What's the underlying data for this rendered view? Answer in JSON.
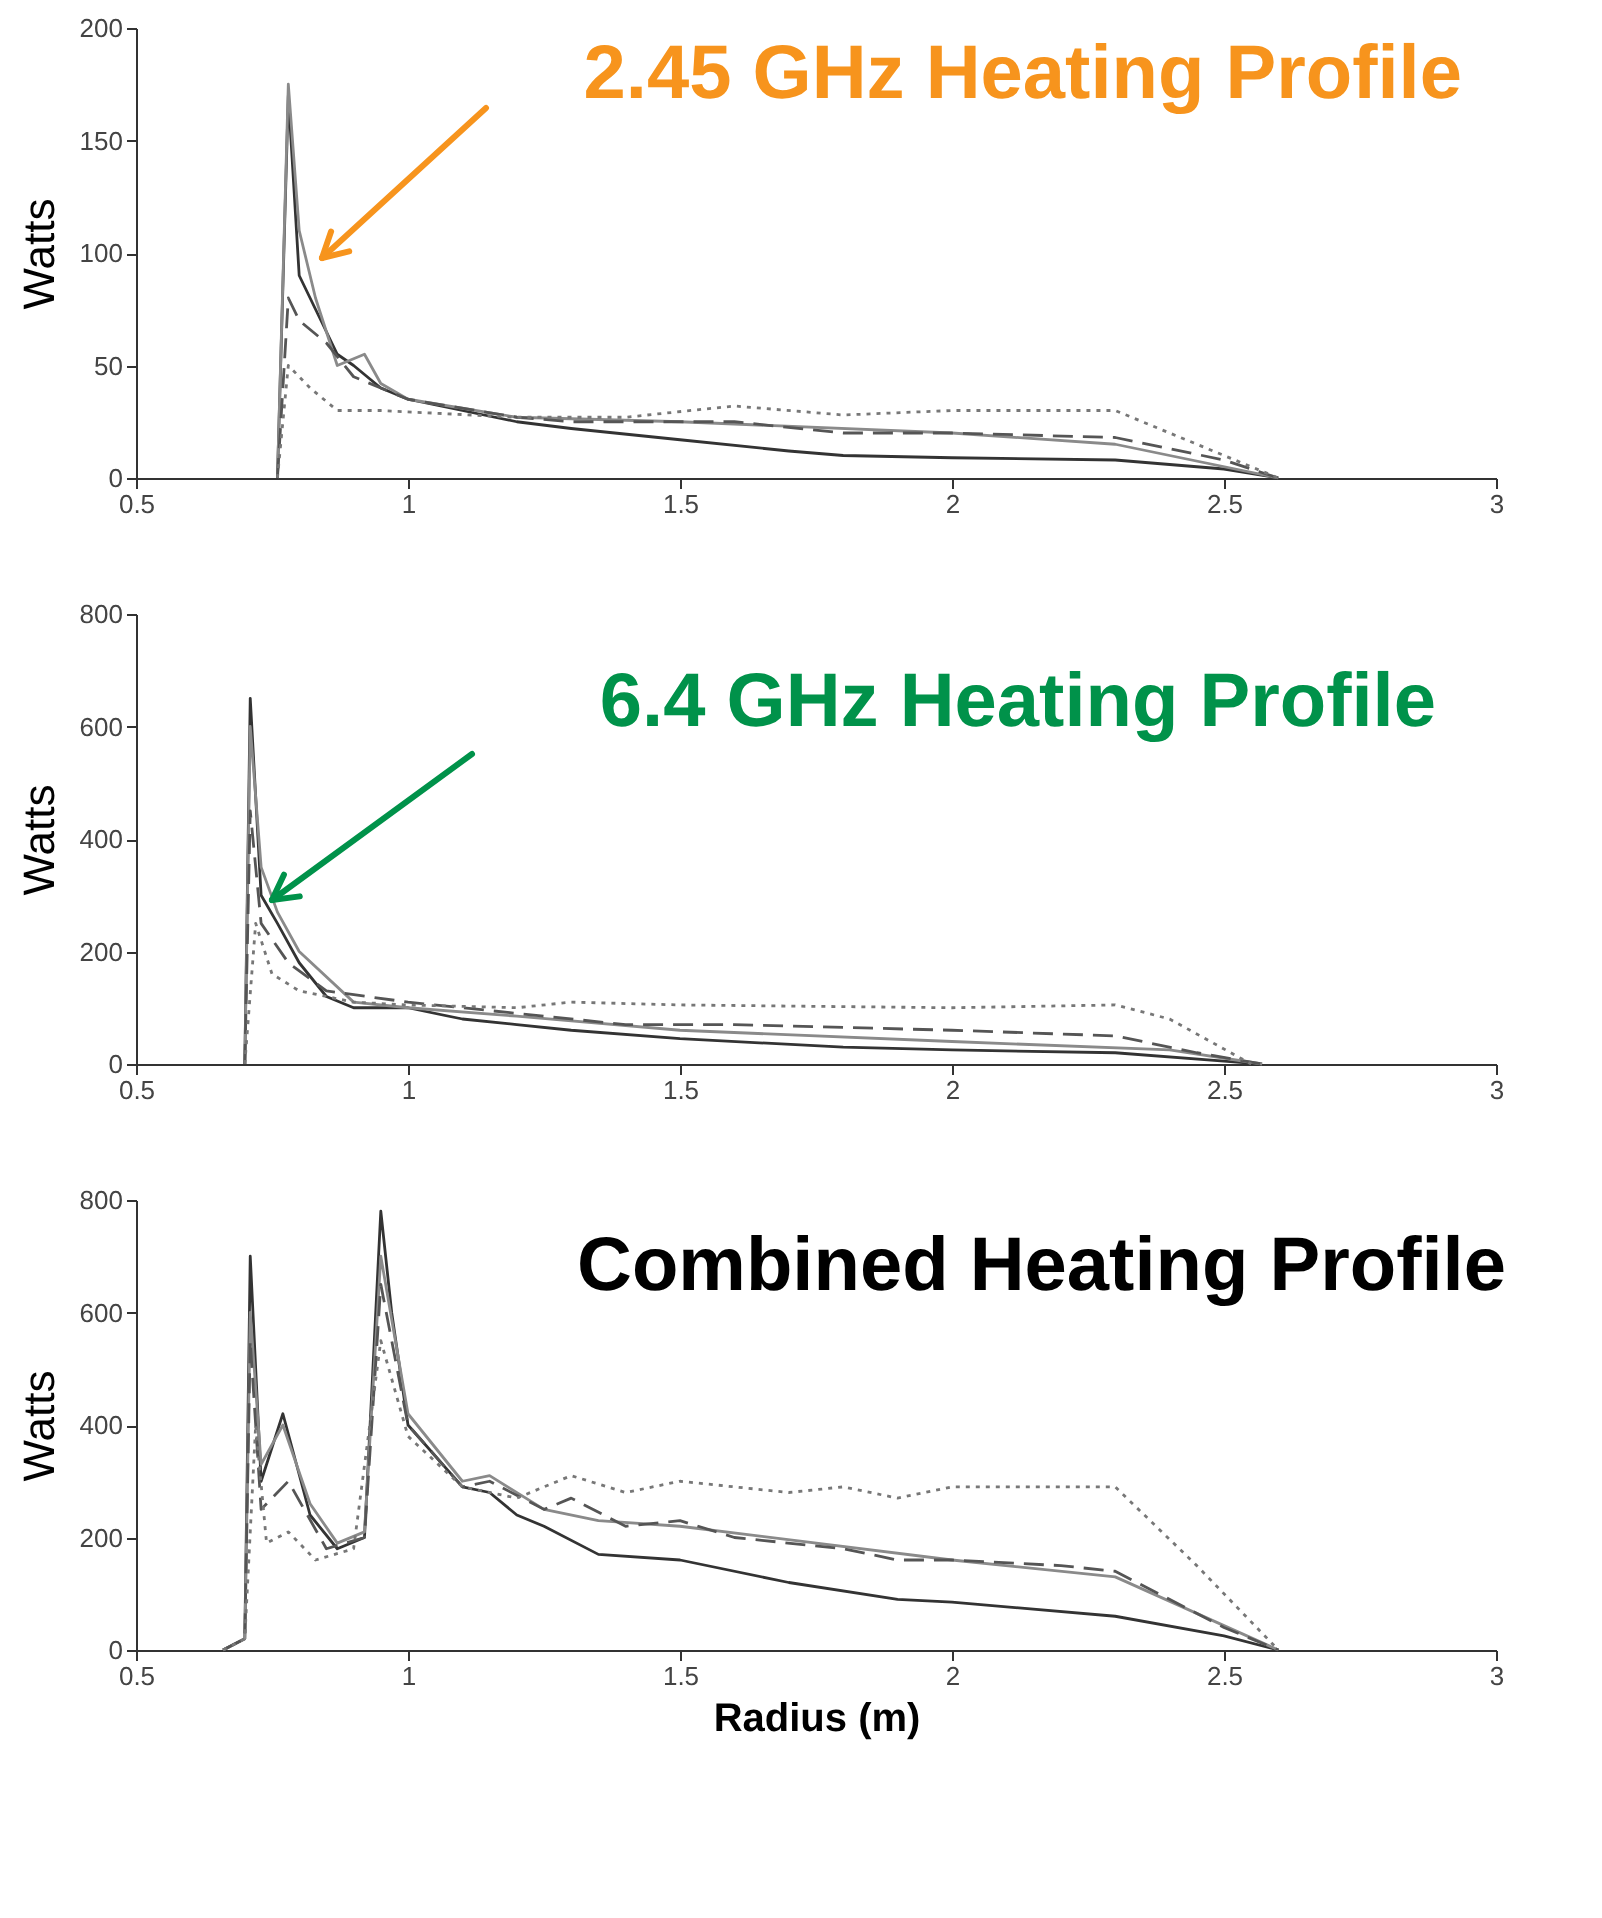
{
  "chart_data": [
    {
      "type": "line",
      "ylabel": "Watts",
      "xlim": [
        0.5,
        3
      ],
      "xticks": [
        0.5,
        1,
        1.5,
        2,
        2.5,
        3
      ],
      "ylim": [
        0,
        200
      ],
      "yticks": [
        0,
        50,
        100,
        150,
        200
      ],
      "grid": false,
      "annotations": [
        "2.45 GHz Heating Profile"
      ],
      "series": [
        {
          "color": "#333333",
          "line_style": "solid",
          "x": [
            0.76,
            0.78,
            0.8,
            0.83,
            0.87,
            0.9,
            0.95,
            1.0,
            1.1,
            1.2,
            1.3,
            1.5,
            1.7,
            1.8,
            2.0,
            2.3,
            2.5,
            2.6
          ],
          "values": [
            0,
            170,
            90,
            75,
            55,
            50,
            40,
            35,
            30,
            25,
            22,
            17,
            12,
            10,
            9,
            8,
            4,
            0
          ]
        },
        {
          "color": "#8a8a8a",
          "line_style": "solid",
          "x": [
            0.76,
            0.78,
            0.8,
            0.83,
            0.87,
            0.92,
            0.95,
            1.0,
            1.2,
            1.5,
            2.0,
            2.3,
            2.6
          ],
          "values": [
            0,
            175,
            110,
            80,
            50,
            55,
            42,
            35,
            27,
            25,
            20,
            15,
            0
          ]
        },
        {
          "color": "#555555",
          "line_style": "dashed",
          "x": [
            0.76,
            0.78,
            0.8,
            0.85,
            0.9,
            0.95,
            1.0,
            1.2,
            1.3,
            1.6,
            1.8,
            2.0,
            2.3,
            2.5,
            2.6
          ],
          "values": [
            0,
            80,
            70,
            60,
            45,
            40,
            35,
            27,
            25,
            25,
            20,
            20,
            18,
            8,
            0
          ]
        },
        {
          "color": "#777777",
          "line_style": "dotted",
          "x": [
            0.76,
            0.78,
            0.82,
            0.87,
            0.95,
            1.2,
            1.4,
            1.6,
            1.8,
            2.0,
            2.3,
            2.5,
            2.6
          ],
          "values": [
            0,
            50,
            40,
            30,
            30,
            27,
            27,
            32,
            28,
            30,
            30,
            10,
            0
          ]
        }
      ]
    },
    {
      "type": "line",
      "ylabel": "Watts",
      "xlim": [
        0.5,
        3
      ],
      "xticks": [
        0.5,
        1,
        1.5,
        2,
        2.5,
        3
      ],
      "ylim": [
        0,
        800
      ],
      "yticks": [
        0,
        200,
        400,
        600,
        800
      ],
      "grid": false,
      "annotations": [
        "6.4 GHz Heating Profile"
      ],
      "series": [
        {
          "color": "#333333",
          "line_style": "solid",
          "x": [
            0.7,
            0.71,
            0.73,
            0.76,
            0.8,
            0.85,
            0.9,
            1.0,
            1.1,
            1.2,
            1.3,
            1.5,
            1.8,
            2.0,
            2.3,
            2.5,
            2.57
          ],
          "values": [
            0,
            650,
            300,
            250,
            180,
            120,
            100,
            100,
            80,
            70,
            60,
            45,
            30,
            25,
            20,
            5,
            0
          ]
        },
        {
          "color": "#8a8a8a",
          "line_style": "solid",
          "x": [
            0.7,
            0.71,
            0.73,
            0.76,
            0.8,
            0.9,
            1.0,
            1.2,
            1.5,
            2.0,
            2.4,
            2.57
          ],
          "values": [
            0,
            600,
            350,
            270,
            200,
            110,
            100,
            85,
            60,
            40,
            25,
            0
          ]
        },
        {
          "color": "#555555",
          "line_style": "dashed",
          "x": [
            0.7,
            0.71,
            0.73,
            0.78,
            0.85,
            1.0,
            1.2,
            1.4,
            1.6,
            2.0,
            2.3,
            2.45,
            2.57
          ],
          "values": [
            0,
            450,
            250,
            180,
            130,
            110,
            90,
            70,
            70,
            60,
            50,
            20,
            0
          ]
        },
        {
          "color": "#777777",
          "line_style": "dotted",
          "x": [
            0.7,
            0.72,
            0.75,
            0.8,
            0.9,
            1.0,
            1.2,
            1.3,
            1.5,
            2.0,
            2.3,
            2.4,
            2.55
          ],
          "values": [
            0,
            250,
            160,
            130,
            110,
            105,
            100,
            110,
            105,
            100,
            105,
            80,
            0
          ]
        }
      ]
    },
    {
      "type": "line",
      "xlabel": "Radius (m)",
      "ylabel": "Watts",
      "xlim": [
        0.5,
        3
      ],
      "xticks": [
        0.5,
        1,
        1.5,
        2,
        2.5,
        3
      ],
      "ylim": [
        0,
        800
      ],
      "yticks": [
        0,
        200,
        400,
        600,
        800
      ],
      "grid": false,
      "annotations": [
        "Combined Heating Profile"
      ],
      "series": [
        {
          "color": "#333333",
          "line_style": "solid",
          "x": [
            0.66,
            0.7,
            0.71,
            0.73,
            0.77,
            0.82,
            0.87,
            0.92,
            0.95,
            0.97,
            1.0,
            1.1,
            1.15,
            1.2,
            1.25,
            1.35,
            1.5,
            1.7,
            1.9,
            2.0,
            2.3,
            2.5,
            2.6
          ],
          "values": [
            0,
            20,
            700,
            300,
            420,
            240,
            180,
            200,
            780,
            600,
            400,
            290,
            280,
            240,
            220,
            170,
            160,
            120,
            90,
            85,
            60,
            25,
            0
          ]
        },
        {
          "color": "#8a8a8a",
          "line_style": "solid",
          "x": [
            0.66,
            0.7,
            0.71,
            0.73,
            0.77,
            0.82,
            0.87,
            0.92,
            0.95,
            1.0,
            1.1,
            1.15,
            1.25,
            1.35,
            1.5,
            2.0,
            2.3,
            2.6
          ],
          "values": [
            0,
            20,
            600,
            330,
            400,
            260,
            190,
            210,
            700,
            420,
            300,
            310,
            250,
            230,
            220,
            160,
            130,
            0
          ]
        },
        {
          "color": "#555555",
          "line_style": "dashed",
          "x": [
            0.66,
            0.7,
            0.71,
            0.73,
            0.78,
            0.85,
            0.92,
            0.95,
            1.0,
            1.1,
            1.15,
            1.25,
            1.3,
            1.4,
            1.5,
            1.6,
            1.8,
            1.9,
            2.0,
            2.2,
            2.3,
            2.5,
            2.6
          ],
          "values": [
            0,
            20,
            550,
            250,
            300,
            180,
            200,
            650,
            400,
            290,
            300,
            250,
            270,
            220,
            230,
            200,
            180,
            160,
            160,
            150,
            140,
            40,
            0
          ]
        },
        {
          "color": "#777777",
          "line_style": "dotted",
          "x": [
            0.66,
            0.7,
            0.72,
            0.74,
            0.78,
            0.83,
            0.9,
            0.95,
            1.0,
            1.1,
            1.2,
            1.3,
            1.4,
            1.5,
            1.7,
            1.8,
            1.9,
            2.0,
            2.3,
            2.45,
            2.6
          ],
          "values": [
            0,
            20,
            400,
            190,
            210,
            160,
            180,
            550,
            380,
            290,
            270,
            310,
            280,
            300,
            280,
            290,
            270,
            290,
            290,
            150,
            0
          ]
        }
      ]
    }
  ]
}
